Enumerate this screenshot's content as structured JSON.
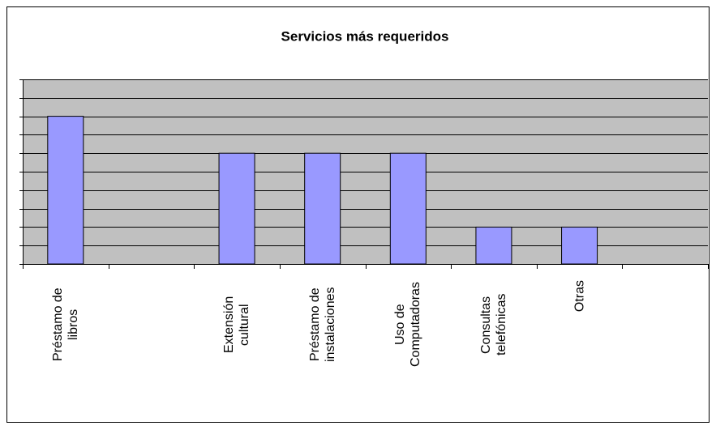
{
  "chart_data": {
    "type": "bar",
    "title": "Servicios más requeridos",
    "categories": [
      "Préstamo de libros",
      null,
      "Extensión cultural",
      "Préstamo de instalaciones",
      "Uso de Computadoras",
      "Consultas telefónicas",
      "Otras",
      null
    ],
    "values": [
      8,
      null,
      6,
      6,
      6,
      2,
      2,
      null
    ],
    "color": "#9999ff",
    "ylim": [
      0,
      10
    ],
    "yticks": [
      0,
      1,
      2,
      3,
      4,
      5,
      6,
      7,
      8,
      9,
      10
    ],
    "grid": true
  }
}
